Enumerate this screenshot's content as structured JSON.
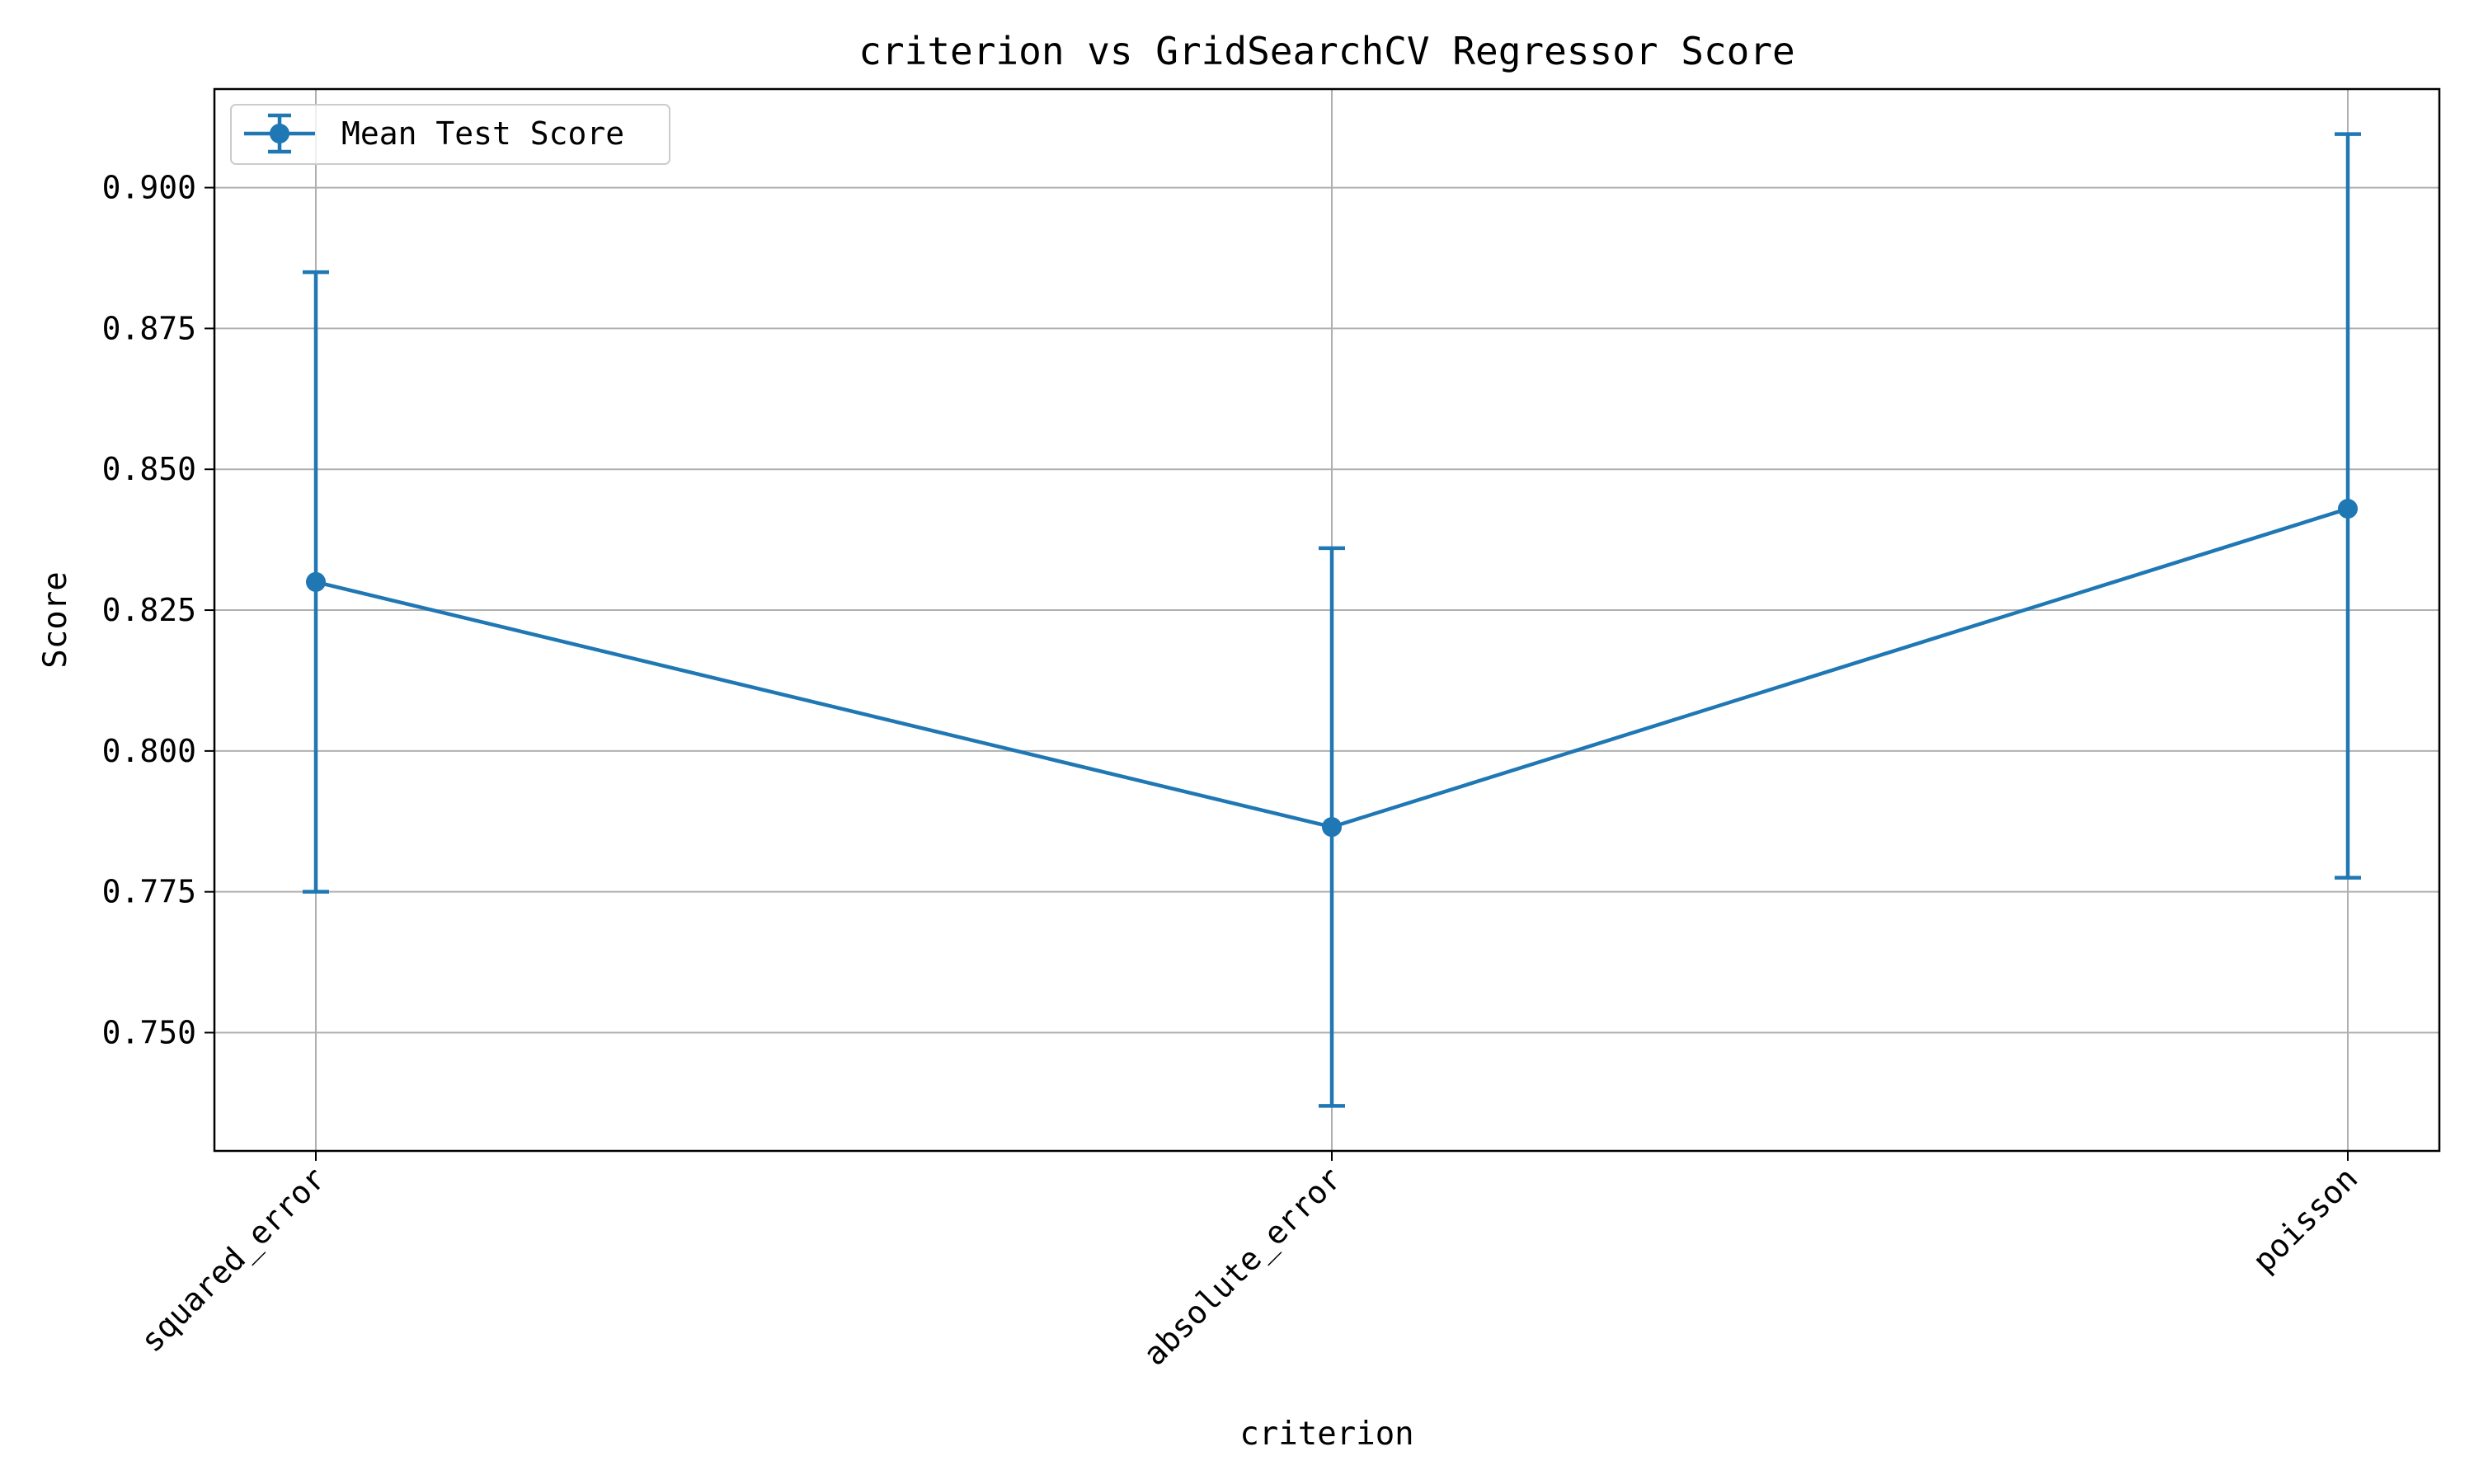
{
  "chart_data": {
    "type": "line",
    "title": "criterion vs GridSearchCV Regressor Score",
    "xlabel": "criterion",
    "ylabel": "Score",
    "categories": [
      "squared_error",
      "absolute_error",
      "poisson"
    ],
    "series": [
      {
        "name": "Mean Test Score",
        "values": [
          0.83,
          0.7865,
          0.843
        ],
        "error_lower": [
          0.775,
          0.737,
          0.7775
        ],
        "error_upper": [
          0.885,
          0.836,
          0.9095
        ],
        "color": "#1f77b4"
      }
    ],
    "ylim": [
      0.729,
      0.9175
    ],
    "yticks": [
      0.75,
      0.775,
      0.8,
      0.825,
      0.85,
      0.875,
      0.9
    ],
    "ytick_labels": [
      "0.750",
      "0.775",
      "0.800",
      "0.825",
      "0.850",
      "0.875",
      "0.900"
    ],
    "grid": true,
    "legend_position": "top-left",
    "x_tick_rotation": -45
  }
}
